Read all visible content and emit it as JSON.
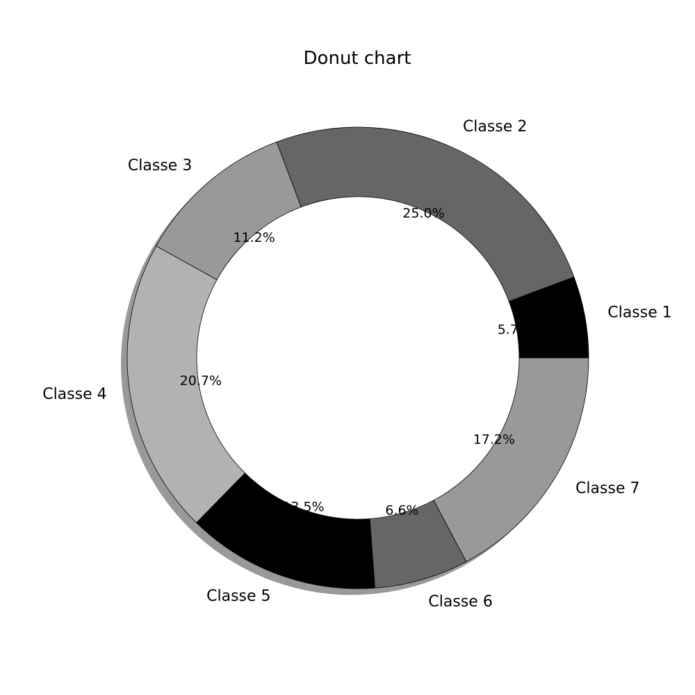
{
  "chart_data": {
    "type": "pie",
    "variant": "donut",
    "title": "Donut chart",
    "categories": [
      "Classe 1",
      "Classe 2",
      "Classe 3",
      "Classe 4",
      "Classe 5",
      "Classe 6",
      "Classe 7"
    ],
    "values": [
      5.7,
      25.0,
      11.2,
      20.7,
      13.5,
      6.6,
      17.2
    ],
    "percent_labels": [
      "5.7%",
      "25.0%",
      "11.2%",
      "20.7%",
      "13.5%",
      "6.6%",
      "17.2%"
    ],
    "colors": [
      "#000000",
      "#666666",
      "#999999",
      "#b2b2b2",
      "#000000",
      "#666666",
      "#999999"
    ],
    "shadow_color": "#999999",
    "edge_color": "#000000",
    "start_angle_deg": 0,
    "direction": "counterclockwise",
    "shadow": true,
    "legend": false
  }
}
